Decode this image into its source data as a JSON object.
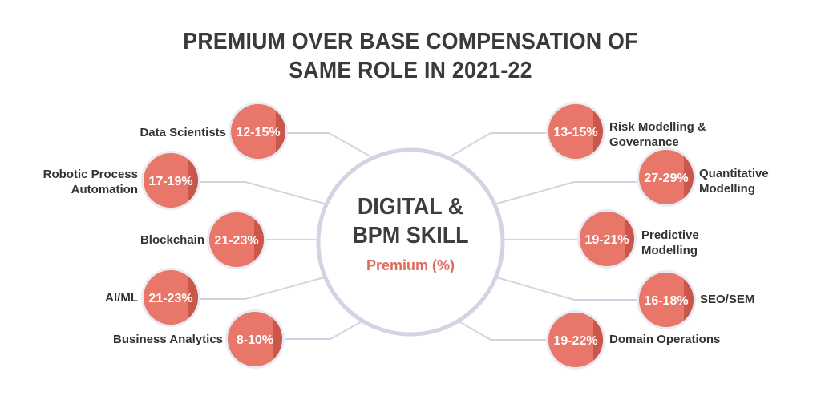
{
  "title": {
    "line1": "PREMIUM OVER BASE COMPENSATION OF",
    "line2": "SAME ROLE IN 2021-22"
  },
  "center": {
    "line1": "DIGITAL &",
    "line2": "BPM SKILL",
    "subtitle": "Premium (%)"
  },
  "colors": {
    "bubble": "#e8776a",
    "bubble_shade": "#c9574b",
    "bubble_border": "#eaeaf3",
    "connector": "#d4d3e4",
    "text": "#333333",
    "accent": "#df6b5e"
  },
  "left_items": [
    {
      "label": "Data Scientists",
      "premium": "12-15%"
    },
    {
      "label": "Robotic Process\nAutomation",
      "premium": "17-19%"
    },
    {
      "label": "Blockchain",
      "premium": "21-23%"
    },
    {
      "label": "AI/ML",
      "premium": "21-23%"
    },
    {
      "label": "Business Analytics",
      "premium": "8-10%"
    }
  ],
  "right_items": [
    {
      "label": "Risk Modelling &\nGovernance",
      "premium": "13-15%"
    },
    {
      "label": "Quantitative\nModelling",
      "premium": "27-29%"
    },
    {
      "label": "Predictive\nModelling",
      "premium": "19-21%"
    },
    {
      "label": "SEO/SEM",
      "premium": "16-18%"
    },
    {
      "label": "Domain Operations",
      "premium": "19-22%"
    }
  ]
}
